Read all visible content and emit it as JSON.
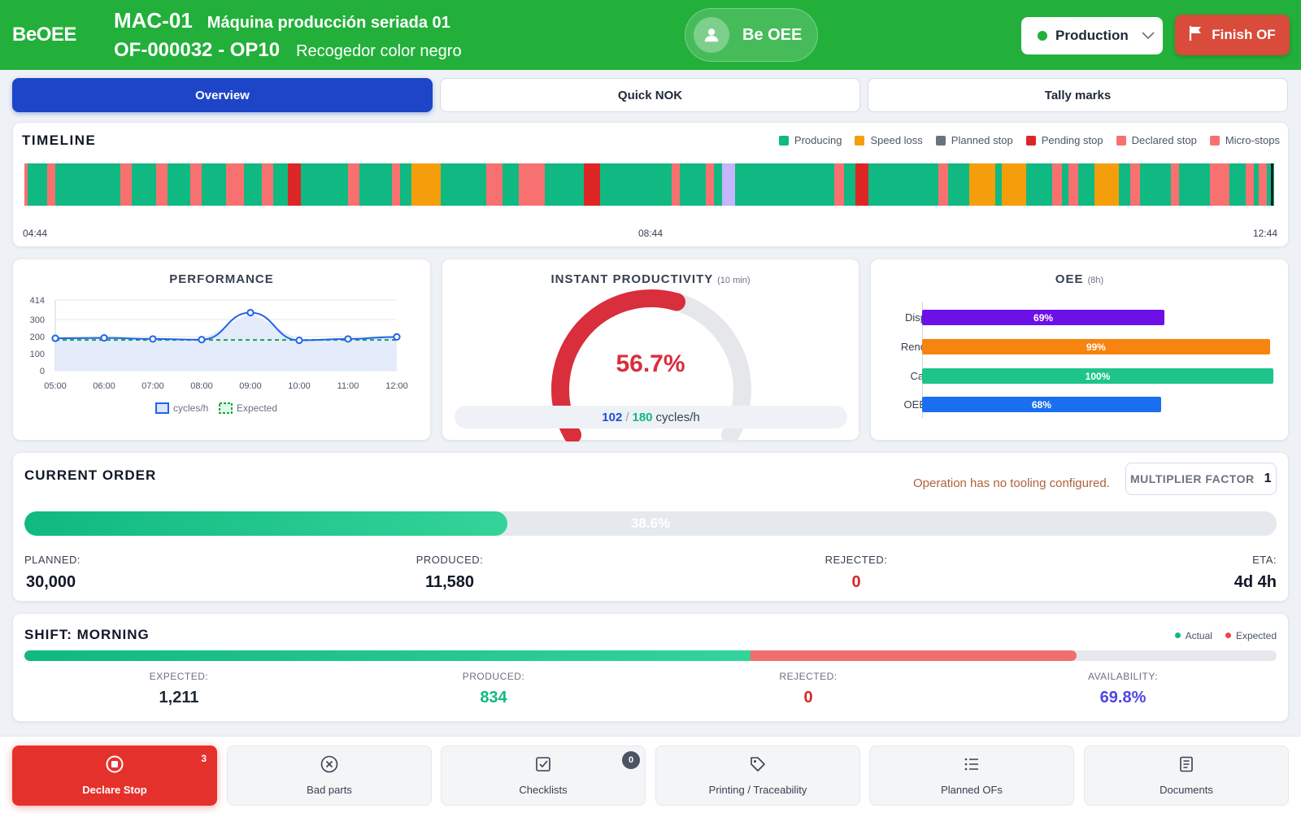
{
  "header": {
    "brand": "BeOEE",
    "machine_code": "MAC-01",
    "machine_name": "Máquina producción seriada 01",
    "order_code": "OF-000032 - OP10",
    "order_name": "Recogedor color negro",
    "user_name": "Be OEE",
    "mode": "Production",
    "finish_label": "Finish OF",
    "colors": {
      "bar": "#22b03a",
      "finish": "#d94b3a"
    }
  },
  "tabs": [
    {
      "label": "Overview",
      "active": true
    },
    {
      "label": "Quick NOK",
      "active": false
    },
    {
      "label": "Tally marks",
      "active": false
    }
  ],
  "timeline": {
    "title": "TIMELINE",
    "legend": [
      {
        "label": "Producing",
        "color": "#10b981"
      },
      {
        "label": "Speed loss",
        "color": "#f59e0b"
      },
      {
        "label": "Planned stop",
        "color": "#6b7280"
      },
      {
        "label": "Pending stop",
        "color": "#dc2626"
      },
      {
        "label": "Declared stop",
        "color": "#f87171"
      },
      {
        "label": "Micro-stops",
        "color": "#f87171"
      }
    ],
    "start": "04:44",
    "mid": "08:44",
    "end": "12:44"
  },
  "performance": {
    "title": "PERFORMANCE",
    "legend_actual": "cycles/h",
    "legend_expected": "Expected"
  },
  "productivity": {
    "title": "INSTANT PRODUCTIVITY",
    "window": "(10 min)",
    "percent_label": "56.7%",
    "percent": 56.7,
    "actual": "102",
    "separator": "/",
    "expected": "180",
    "unit": "cycles/h"
  },
  "oee": {
    "title": "OEE",
    "window": "(8h)",
    "rows": [
      {
        "label": "Disp",
        "value": 69,
        "text": "69%",
        "color": "#6d10e8"
      },
      {
        "label": "Rend",
        "value": 99,
        "text": "99%",
        "color": "#f7840f"
      },
      {
        "label": "Cal",
        "value": 100,
        "text": "100%",
        "color": "#1ec58b"
      },
      {
        "label": "OEE",
        "value": 68,
        "text": "68%",
        "color": "#1a6ef0"
      }
    ]
  },
  "current_order": {
    "title": "CURRENT ORDER",
    "tooling_warning": "Operation has no tooling configured.",
    "multiplier_label": "MULTIPLIER FACTOR",
    "multiplier_value": "1",
    "progress": 38.6,
    "progress_label": "38.6%",
    "planned_label": "PLANNED:",
    "planned": "30,000",
    "produced_label": "PRODUCED:",
    "produced": "11,580",
    "rejected_label": "REJECTED:",
    "rejected": "0",
    "eta_label": "ETA:",
    "eta": "4d 4h"
  },
  "shift": {
    "title": "SHIFT: MORNING",
    "legend_actual": "Actual",
    "legend_expected": "Expected",
    "actual_fraction": 0.58,
    "expected_fraction": 0.84,
    "expected_label": "EXPECTED:",
    "expected": "1,211",
    "produced_label": "PRODUCED:",
    "produced": "834",
    "rejected_label": "REJECTED:",
    "rejected": "0",
    "availability_label": "AVAILABILITY:",
    "availability": "69.8%"
  },
  "actions": [
    {
      "label": "Declare Stop",
      "icon": "stop-circle-icon",
      "badge": "3"
    },
    {
      "label": "Bad parts",
      "icon": "x-circle-icon"
    },
    {
      "label": "Checklists",
      "icon": "checkbox-icon",
      "badge": "0"
    },
    {
      "label": "Printing / Traceability",
      "icon": "tag-icon"
    },
    {
      "label": "Planned OFs",
      "icon": "list-icon"
    },
    {
      "label": "Documents",
      "icon": "document-icon"
    }
  ],
  "chart_data": {
    "type": "line",
    "title": "PERFORMANCE",
    "x": [
      "05:00",
      "06:00",
      "07:00",
      "08:00",
      "09:00",
      "10:00",
      "11:00",
      "12:00"
    ],
    "series": [
      {
        "name": "cycles/h",
        "values": [
          190,
          192,
          186,
          182,
          340,
          178,
          186,
          198
        ]
      },
      {
        "name": "Expected",
        "values": [
          180,
          180,
          180,
          180,
          180,
          180,
          180,
          180
        ]
      }
    ],
    "yticks": [
      0,
      100,
      200,
      300,
      414
    ],
    "ylim": [
      0,
      414
    ]
  }
}
